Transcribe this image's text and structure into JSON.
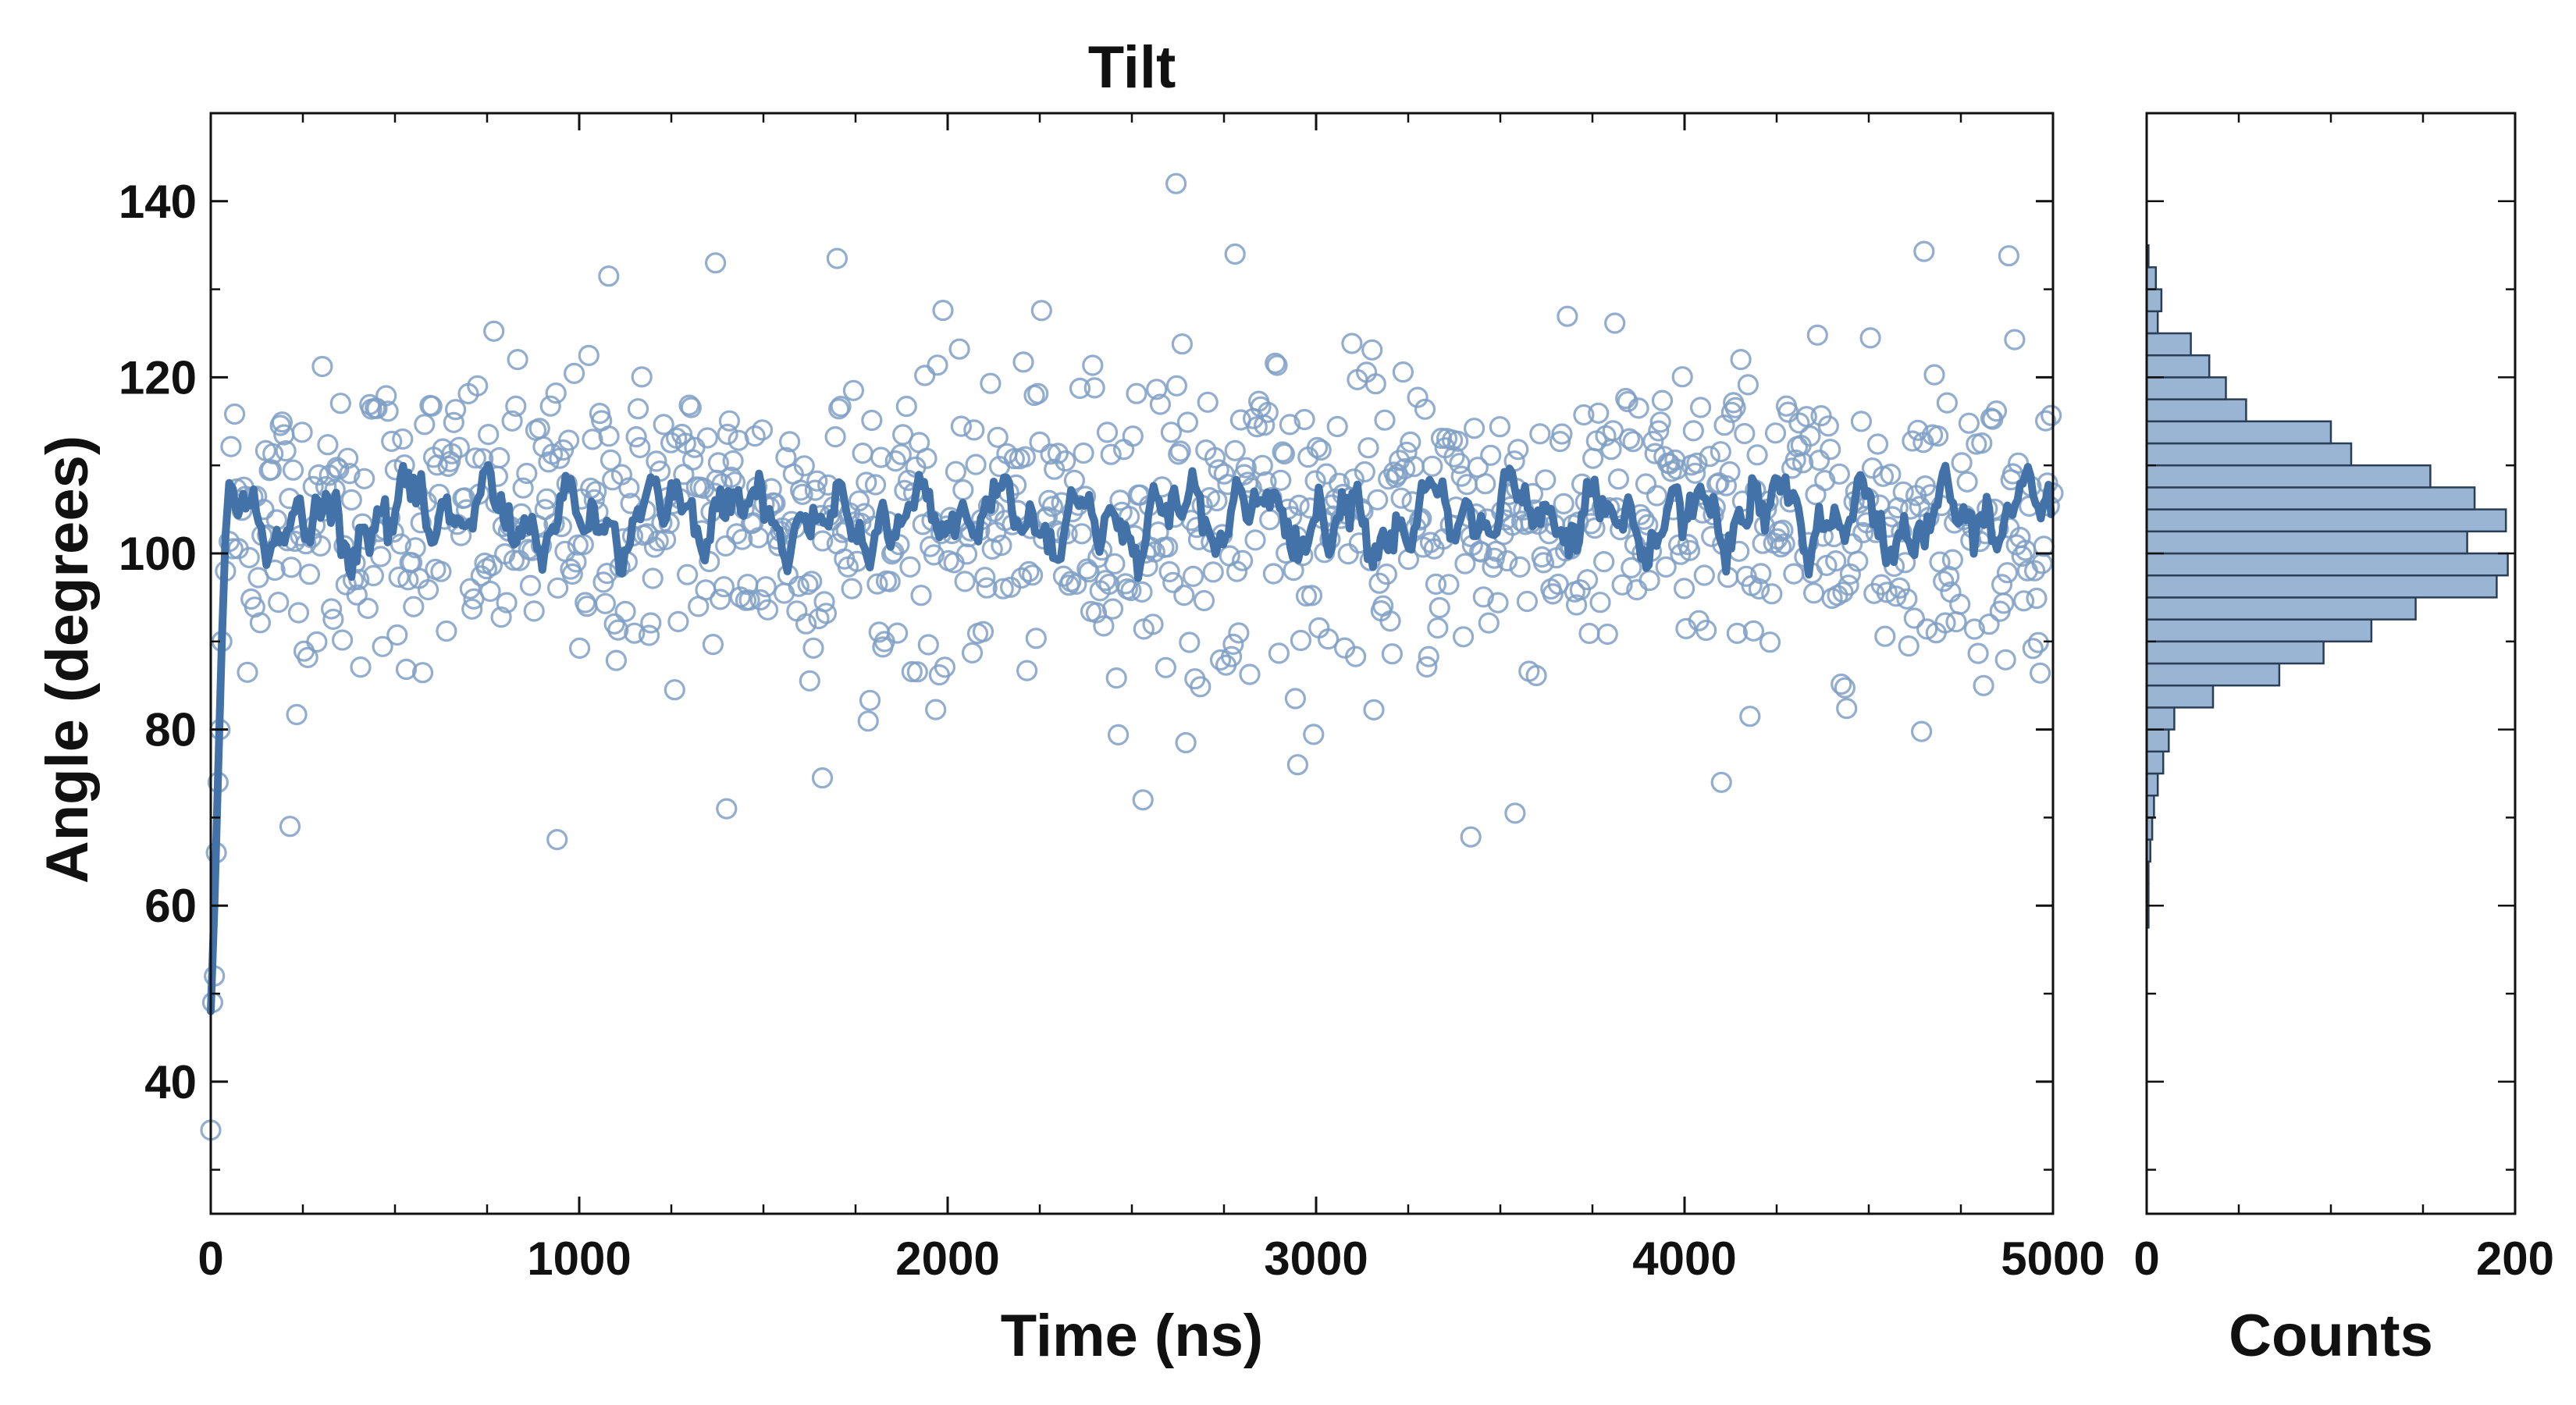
{
  "chart_data": [
    {
      "type": "scatter",
      "title": "Tilt",
      "xlabel": "Time (ns)",
      "ylabel": "Angle (degrees)",
      "xlim": [
        0,
        5000
      ],
      "ylim": [
        25,
        150
      ],
      "xticks": [
        0,
        1000,
        2000,
        3000,
        4000,
        5000
      ],
      "yticks": [
        40,
        60,
        80,
        100,
        120,
        140
      ],
      "grid": false,
      "colors": {
        "points": "#7f9fc4",
        "line": "#4372a8"
      },
      "series": [
        {
          "kind": "scatter",
          "description_hidden": "raw frames",
          "x_range": [
            0,
            5000
          ],
          "n_points": 1000,
          "mean": 104,
          "sd": 8.5,
          "initial_values": [
            [
              0,
              34.5
            ],
            [
              5,
              49
            ],
            [
              10,
              52
            ],
            [
              15,
              66
            ],
            [
              20,
              74
            ],
            [
              25,
              80
            ],
            [
              30,
              90
            ],
            [
              40,
              98
            ]
          ],
          "outliers": [
            [
              2620,
              142
            ],
            [
              2780,
              134
            ],
            [
              1700,
              133.5
            ],
            [
              1370,
              133
            ],
            [
              1080,
              131.5
            ],
            [
              4650,
              134.3
            ],
            [
              4880,
              133.8
            ],
            [
              215,
              69
            ],
            [
              940,
              67.5
            ],
            [
              3420,
              67.8
            ],
            [
              2530,
              72
            ],
            [
              3540,
              70.5
            ],
            [
              4100,
              74
            ],
            [
              1400,
              71
            ],
            [
              1660,
              74.5
            ],
            [
              2950,
              76
            ]
          ]
        },
        {
          "kind": "line",
          "description_hidden": "running average",
          "start": [
            [
              0,
              48
            ],
            [
              10,
              60
            ],
            [
              20,
              75
            ],
            [
              30,
              90
            ],
            [
              40,
              102
            ],
            [
              50,
              108
            ]
          ],
          "mean": 104,
          "amplitude": 5
        }
      ]
    },
    {
      "type": "bar",
      "orientation": "horizontal",
      "xlabel": "Counts",
      "xlim": [
        0,
        200
      ],
      "xticks": [
        0,
        200
      ],
      "bin_width": 2.5,
      "bins_start": [
        57.5,
        60,
        62.5,
        65,
        67.5,
        70,
        72.5,
        75,
        77.5,
        80,
        82.5,
        85,
        87.5,
        90,
        92.5,
        95,
        97.5,
        100,
        102.5,
        105,
        107.5,
        110,
        112.5,
        115,
        117.5,
        120,
        122.5,
        125,
        127.5,
        130,
        132.5
      ],
      "counts": [
        1,
        1,
        1,
        2,
        3,
        4,
        6,
        9,
        12,
        15,
        36,
        72,
        96,
        122,
        146,
        190,
        196,
        174,
        195,
        178,
        154,
        111,
        100,
        54,
        43,
        34,
        24,
        6,
        8,
        5,
        1
      ],
      "color": "#9ab4d3",
      "edge_color": "#2a3f57"
    }
  ]
}
